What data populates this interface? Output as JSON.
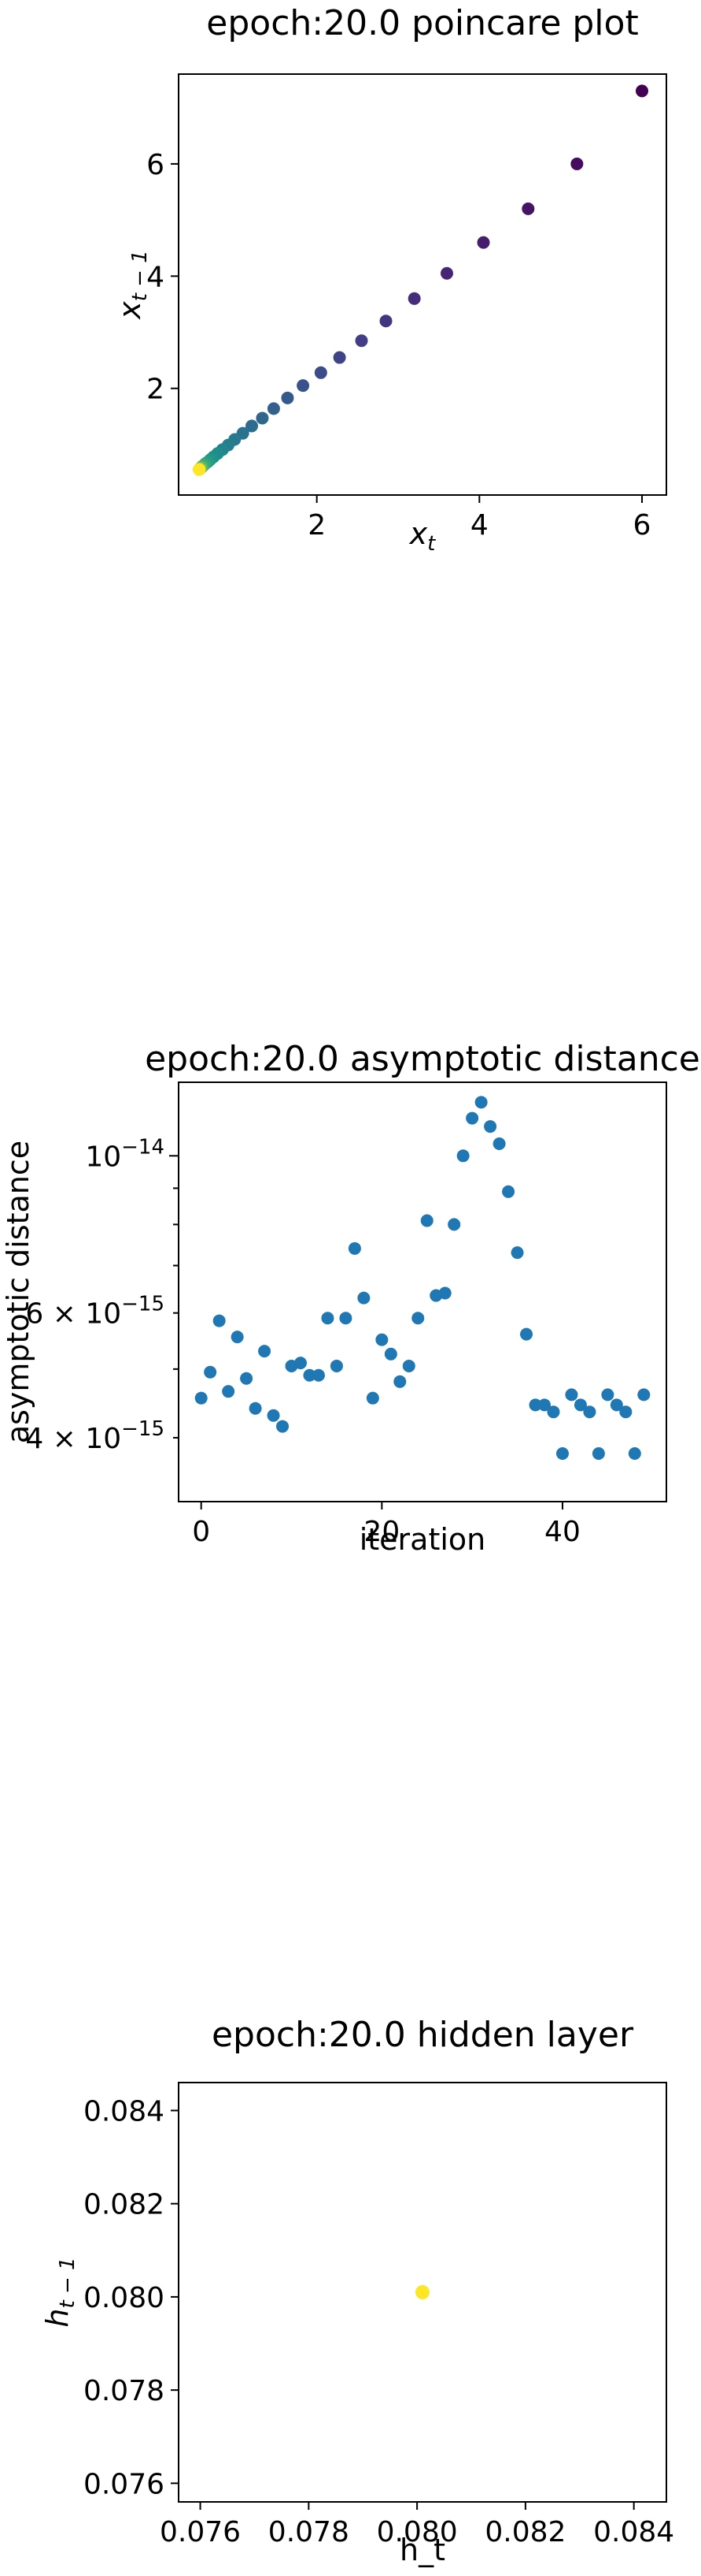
{
  "chart_data": [
    {
      "type": "scatter",
      "title": "epoch:20.0 poincare plot",
      "xlabel": "x_t",
      "ylabel": "x_t-1",
      "xlim": [
        0.3,
        6.3
      ],
      "ylim": [
        0.1,
        7.6
      ],
      "xticks": [
        2,
        4,
        6
      ],
      "yticks": [
        2,
        4,
        6
      ],
      "grid": false,
      "colormap": "viridis",
      "points": [
        {
          "x": 6.0,
          "y": 7.3,
          "color": "#440154"
        },
        {
          "x": 5.2,
          "y": 6.0,
          "color": "#460b5e"
        },
        {
          "x": 4.6,
          "y": 5.2,
          "color": "#471365"
        },
        {
          "x": 4.05,
          "y": 4.6,
          "color": "#471d6d"
        },
        {
          "x": 3.6,
          "y": 4.05,
          "color": "#472575"
        },
        {
          "x": 3.2,
          "y": 3.6,
          "color": "#462d7c"
        },
        {
          "x": 2.85,
          "y": 3.2,
          "color": "#443581"
        },
        {
          "x": 2.55,
          "y": 2.85,
          "color": "#423d84"
        },
        {
          "x": 2.28,
          "y": 2.55,
          "color": "#3f4487"
        },
        {
          "x": 2.05,
          "y": 2.28,
          "color": "#3c4b8a"
        },
        {
          "x": 1.83,
          "y": 2.05,
          "color": "#39528c"
        },
        {
          "x": 1.64,
          "y": 1.83,
          "color": "#36598c"
        },
        {
          "x": 1.47,
          "y": 1.64,
          "color": "#33608d"
        },
        {
          "x": 1.33,
          "y": 1.47,
          "color": "#30668e"
        },
        {
          "x": 1.2,
          "y": 1.33,
          "color": "#2d6c8e"
        },
        {
          "x": 1.09,
          "y": 1.2,
          "color": "#2a728e"
        },
        {
          "x": 0.99,
          "y": 1.09,
          "color": "#28788e"
        },
        {
          "x": 0.91,
          "y": 0.99,
          "color": "#257e8e"
        },
        {
          "x": 0.84,
          "y": 0.91,
          "color": "#22848d"
        },
        {
          "x": 0.78,
          "y": 0.84,
          "color": "#208a8c"
        },
        {
          "x": 0.73,
          "y": 0.78,
          "color": "#1e908a"
        },
        {
          "x": 0.69,
          "y": 0.73,
          "color": "#1f9688"
        },
        {
          "x": 0.66,
          "y": 0.69,
          "color": "#259c84"
        },
        {
          "x": 0.63,
          "y": 0.66,
          "color": "#2ea27f"
        },
        {
          "x": 0.61,
          "y": 0.63,
          "color": "#3aa879"
        },
        {
          "x": 0.59,
          "y": 0.61,
          "color": "#49ae71"
        },
        {
          "x": 0.58,
          "y": 0.59,
          "color": "#5ab468"
        },
        {
          "x": 0.57,
          "y": 0.58,
          "color": "#6cba5e"
        },
        {
          "x": 0.565,
          "y": 0.57,
          "color": "#80c052"
        },
        {
          "x": 0.56,
          "y": 0.565,
          "color": "#95c645"
        },
        {
          "x": 0.557,
          "y": 0.56,
          "color": "#abcb38"
        },
        {
          "x": 0.555,
          "y": 0.557,
          "color": "#c2cf2b"
        },
        {
          "x": 0.553,
          "y": 0.555,
          "color": "#d8d424"
        },
        {
          "x": 0.552,
          "y": 0.553,
          "color": "#fde725"
        }
      ]
    },
    {
      "type": "scatter",
      "title": "epoch:20.0 asymptotic distance",
      "xlabel": "iteration",
      "ylabel": "asymptotic distance",
      "xlim": [
        -2.5,
        51.5
      ],
      "ylim": [
        3.25e-15,
        1.27e-14
      ],
      "yscale": "log",
      "xticks": [
        0,
        20,
        40
      ],
      "yticks_major": [
        {
          "value": 1e-14,
          "label": "10^-14"
        }
      ],
      "yticks_minor": [
        {
          "value": 4e-15,
          "label": "4 × 10^-15"
        },
        {
          "value": 6e-15,
          "label": "6 × 10^-15"
        }
      ],
      "yticks_unlabeled": [
        5e-15,
        7e-15,
        8e-15,
        9e-15
      ],
      "grid": false,
      "color": "#1f77b4",
      "x": [
        0,
        1,
        2,
        3,
        4,
        5,
        6,
        7,
        8,
        9,
        10,
        11,
        12,
        13,
        14,
        15,
        16,
        17,
        18,
        19,
        20,
        21,
        22,
        23,
        24,
        25,
        26,
        27,
        28,
        29,
        30,
        31,
        32,
        33,
        34,
        35,
        36,
        37,
        38,
        39,
        40,
        41,
        42,
        43,
        44,
        45,
        46,
        47,
        48,
        49
      ],
      "y": [
        4.55e-15,
        4.95e-15,
        5.85e-15,
        4.65e-15,
        5.55e-15,
        4.85e-15,
        4.4e-15,
        5.3e-15,
        4.3e-15,
        4.15e-15,
        5.05e-15,
        5.1e-15,
        4.9e-15,
        4.9e-15,
        5.9e-15,
        5.05e-15,
        5.9e-15,
        7.4e-15,
        6.3e-15,
        4.55e-15,
        5.5e-15,
        5.25e-15,
        4.8e-15,
        5.05e-15,
        5.9e-15,
        8.1e-15,
        6.35e-15,
        6.4e-15,
        8e-15,
        1e-14,
        1.13e-14,
        1.19e-14,
        1.1e-14,
        1.04e-14,
        8.9e-15,
        7.3e-15,
        5.6e-15,
        4.45e-15,
        4.45e-15,
        4.35e-15,
        3.8e-15,
        4.6e-15,
        4.45e-15,
        4.35e-15,
        3.8e-15,
        4.6e-15,
        4.45e-15,
        4.35e-15,
        3.8e-15,
        4.6e-15
      ]
    },
    {
      "type": "scatter",
      "title": "epoch:20.0 hidden layer",
      "xlabel": "h_t",
      "ylabel": "h_t-1",
      "xlim": [
        0.0756,
        0.0846
      ],
      "ylim": [
        0.0756,
        0.0846
      ],
      "xticks": [
        "0.076",
        "0.078",
        "0.080",
        "0.082",
        "0.084"
      ],
      "yticks": [
        "0.076",
        "0.078",
        "0.080",
        "0.082",
        "0.084"
      ],
      "grid": false,
      "points": [
        {
          "x": 0.0801,
          "y": 0.0801,
          "color": "#fde725"
        }
      ]
    }
  ]
}
